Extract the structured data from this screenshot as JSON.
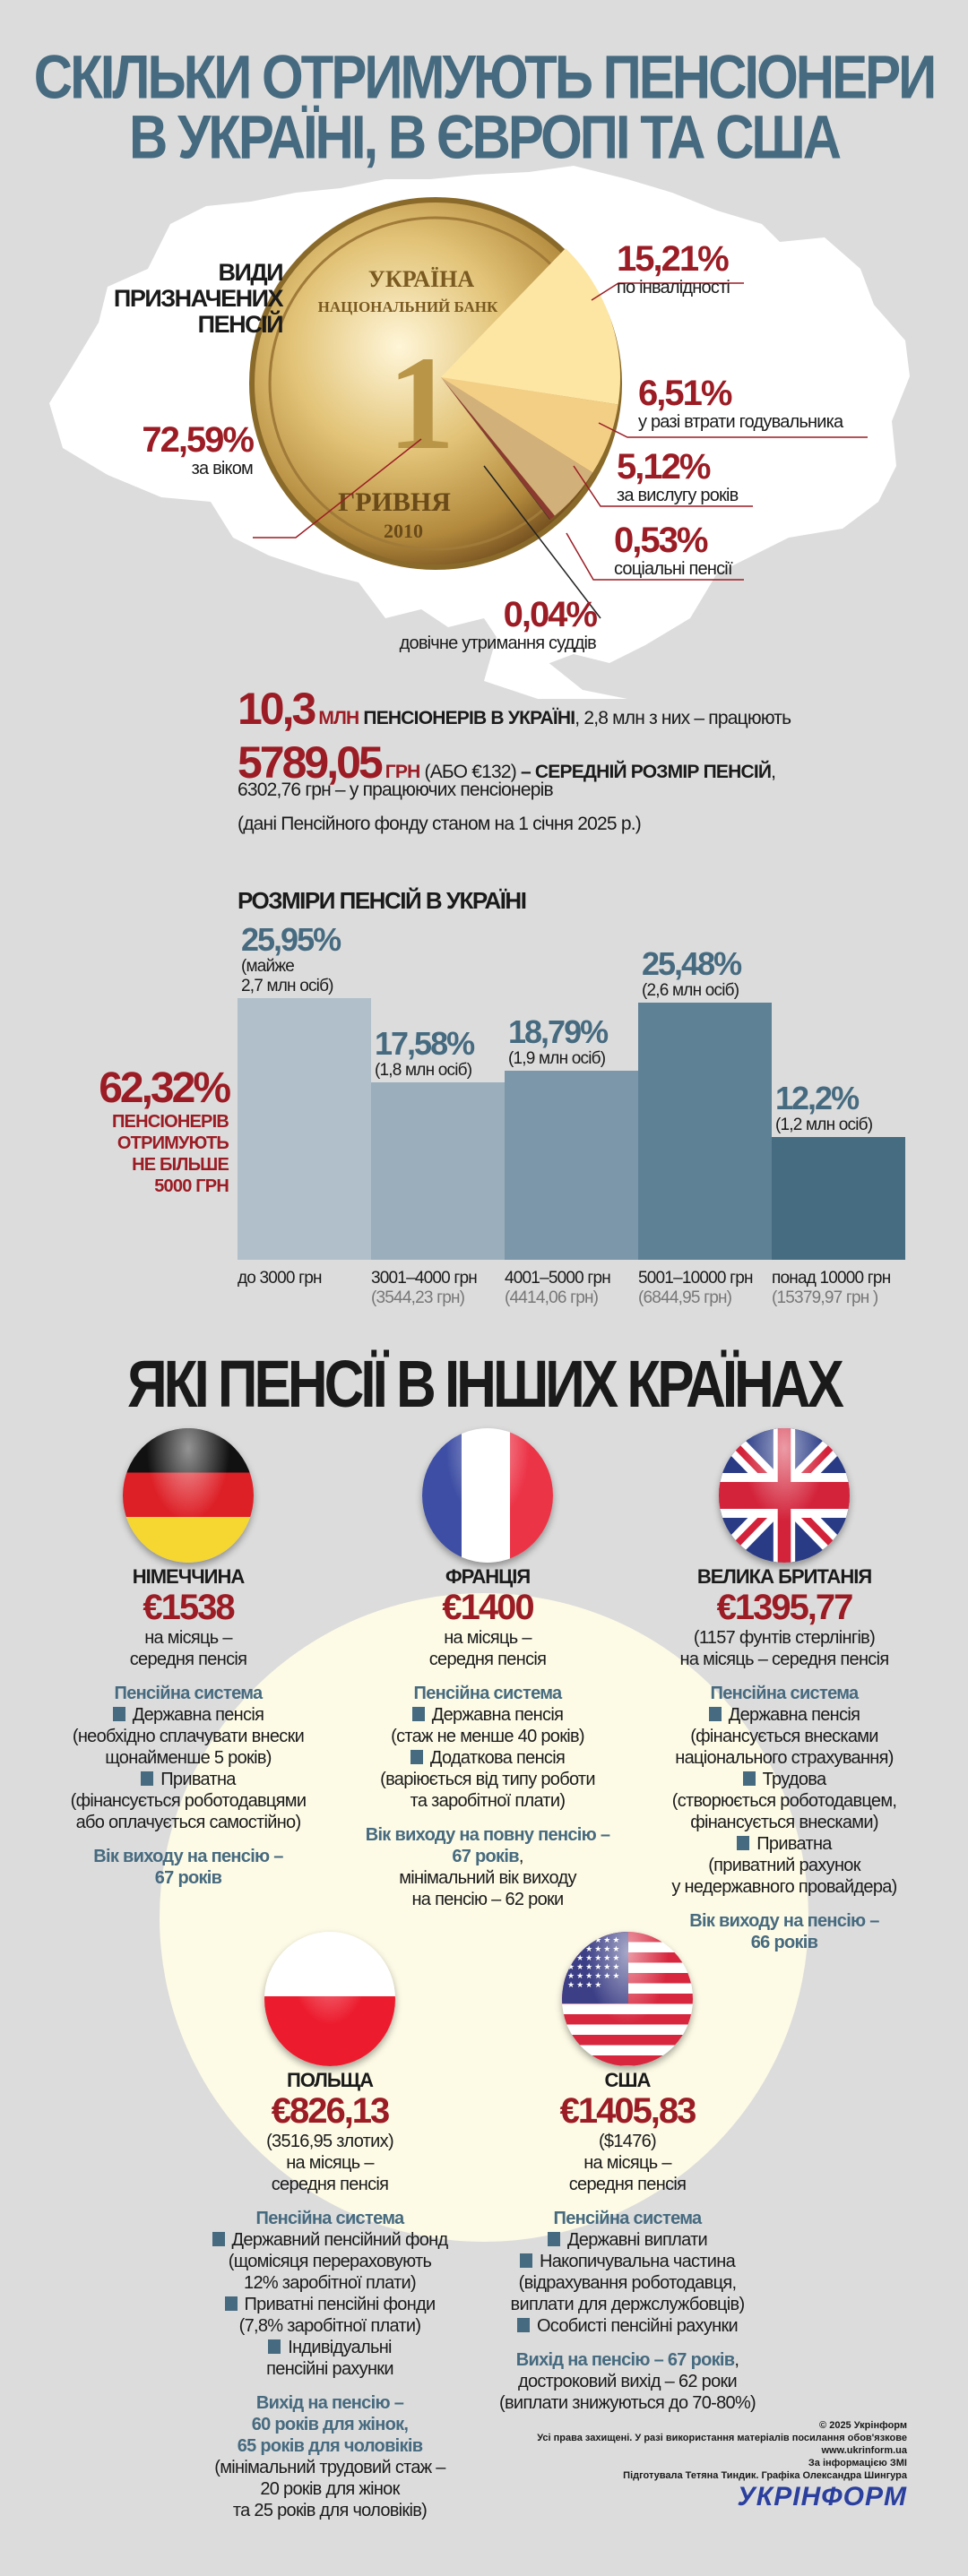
{
  "title": {
    "line1": "СКІЛЬКИ ОТРИМУЮТЬ ПЕНСІОНЕРИ",
    "line2": "В УКРАЇНІ, В ЄВРОПІ ТА США"
  },
  "pension_types": {
    "heading": [
      "ВИДИ",
      "ПРИЗНАЧЕНИХ",
      "ПЕНСІЙ"
    ],
    "coin_lettering": {
      "top": "УКРАЇНА",
      "bank": "НАЦІОНАЛЬНИЙ БАНК",
      "value": "1",
      "currency": "ГРИВНЯ",
      "year": "2010"
    }
  },
  "stats": {
    "pensioners_value": "10,3",
    "pensioners_unit": "МЛН",
    "pensioners_label": "ПЕНСІОНЕРІВ В УКРАЇНІ",
    "pensioners_note": ", 2,8 млн з них – працюють",
    "avg_value": "5789,05",
    "avg_unit": "ГРН",
    "avg_eur": "(АБО  €132)",
    "avg_label": "– СЕРЕДНІЙ РОЗМІР ПЕНСІЙ",
    "avg_working": "6302,76 грн – у працюючих пенсіонерів",
    "source": "(дані Пенсійного фонду станом на 1 січня 2025 р.)"
  },
  "highlight": {
    "value": "62,32%",
    "lines": [
      "ПЕНСІОНЕРІВ",
      "ОТРИМУЮТЬ",
      "НЕ БІЛЬШЕ",
      "5000 ГРН"
    ]
  },
  "other_countries_heading": "ЯКІ ПЕНСІЇ В ІНШИХ КРАЇНАХ",
  "colors": {
    "accent_red": "#9b1c24",
    "accent_blue": "#466a7f",
    "background": "#dcdcdc",
    "cream": "#fdfbe6"
  },
  "chart_data": [
    {
      "type": "pie",
      "title": "ВИДИ ПРИЗНАЧЕНИХ ПЕНСІЙ",
      "slices": [
        {
          "label": "за віком",
          "value": 72.59,
          "display": "72,59%"
        },
        {
          "label": "по інвалідності",
          "value": 15.21,
          "display": "15,21%",
          "color": "#fde6a4"
        },
        {
          "label": "у разі втрати годувальника",
          "value": 6.51,
          "display": "6,51%",
          "color": "#f3cf86"
        },
        {
          "label": "за вислугу років",
          "value": 5.12,
          "display": "5,12%",
          "color": "#d2b07a"
        },
        {
          "label": "соціальні пенсії",
          "value": 0.53,
          "display": "0,53%",
          "color": "#8a3a2e"
        },
        {
          "label": "довічне утримання суддів",
          "value": 0.04,
          "display": "0,04%",
          "color": "#222222"
        }
      ]
    },
    {
      "type": "bar",
      "title": "РОЗМІРИ ПЕНСІЙ В УКРАЇНІ",
      "categories": [
        "до 3000 грн",
        "3001–4000 грн",
        "4001–5000 грн",
        "5001–10000 грн",
        "понад 10000 грн"
      ],
      "averages": [
        "",
        "(3544,23 грн)",
        "(4414,06 грн)",
        "(6844,95 грн)",
        "(15379,97 грн )"
      ],
      "values": [
        25.95,
        17.58,
        18.79,
        25.48,
        12.2
      ],
      "value_labels": [
        "25,95%",
        "17,58%",
        "18,79%",
        "25,48%",
        "12,2%"
      ],
      "people_labels": [
        [
          "(майже",
          "2,7 млн осіб)"
        ],
        [
          "(1,8 млн осіб)"
        ],
        [
          "(1,9 млн осіб)"
        ],
        [
          "(2,6 млн осіб)"
        ],
        [
          "(1,2 млн осіб)"
        ]
      ],
      "colors": [
        "#b0bfc9",
        "#9aaebb",
        "#7b97a9",
        "#5e8196",
        "#456c80"
      ],
      "ylim": [
        0,
        26
      ]
    }
  ],
  "countries": [
    {
      "id": "germany",
      "flag": "germany-flag-icon",
      "name": "НІМЕЧЧИНА",
      "price": "€1538",
      "sub": [
        "на місяць –",
        "середня пенсія"
      ],
      "system_title": "Пенсійна система",
      "items": [
        {
          "name": "Державна пенсія",
          "lines": [
            "(необхідно сплачувати внески",
            "щонайменше 5 років)"
          ]
        },
        {
          "name": "Приватна",
          "lines": [
            "(фінансується роботодавцями",
            "або оплачується самостійно)"
          ]
        }
      ],
      "retirement": [
        {
          "text": "Вік виходу на пенсію –",
          "accent": true
        },
        {
          "text": "67 років",
          "accent": true
        }
      ]
    },
    {
      "id": "france",
      "flag": "france-flag-icon",
      "name": "ФРАНЦІЯ",
      "price": "€1400",
      "sub": [
        "на місяць –",
        "середня пенсія"
      ],
      "system_title": "Пенсійна система",
      "items": [
        {
          "name": "Державна пенсія",
          "lines": [
            "(стаж не менше 40 років)"
          ]
        },
        {
          "name": "Додаткова пенсія",
          "lines": [
            "(варіюється від типу роботи",
            "та заробітної плати)"
          ]
        }
      ],
      "retirement": [
        {
          "text": "Вік виходу на повну пенсію –",
          "accent": true
        },
        {
          "text": "67 років",
          "accent": true,
          "tail": ","
        },
        {
          "text": "мінімальний вік виходу"
        },
        {
          "text": "на пенсію – 62 роки"
        }
      ]
    },
    {
      "id": "uk",
      "flag": "uk-flag-icon",
      "name": "ВЕЛИКА БРИТАНІЯ",
      "price": "€1395,77",
      "sub": [
        "(1157 фунтів стерлінгів)",
        "на місяць – середня пенсія"
      ],
      "system_title": "Пенсійна система",
      "items": [
        {
          "name": "Державна пенсія",
          "lines": [
            "(фінансується внесками",
            "національного страхування)"
          ]
        },
        {
          "name": "Трудова",
          "lines": [
            "(створюється роботодавцем,",
            "фінансується внесками)"
          ]
        },
        {
          "name": "Приватна",
          "lines": [
            "(приватний рахунок",
            "у недержавного провайдера)"
          ]
        }
      ],
      "retirement": [
        {
          "text": "Вік виходу на пенсію –",
          "accent": true
        },
        {
          "text": "66 років",
          "accent": true
        }
      ]
    },
    {
      "id": "poland",
      "flag": "poland-flag-icon",
      "name": "ПОЛЬЩА",
      "price": "€826,13",
      "sub": [
        "(3516,95 злотих)",
        "на місяць –",
        "середня пенсія"
      ],
      "system_title": "Пенсійна система",
      "items": [
        {
          "name": "Державний пенсійний фонд",
          "lines": [
            "(щомісяця перераховують",
            "12% заробітної плати)"
          ]
        },
        {
          "name": "Приватні пенсійні фонди",
          "lines": [
            "(7,8% заробітної плати)"
          ]
        },
        {
          "name": "Індивідуальні",
          "lines": [
            "пенсійні рахунки"
          ]
        }
      ],
      "retirement": [
        {
          "text": "Вихід на пенсію –",
          "accent": true
        },
        {
          "text": "60 років для жінок,",
          "accent": true
        },
        {
          "text": "65 років для чоловіків",
          "accent": true
        },
        {
          "text": "(мінімальний трудовий стаж –"
        },
        {
          "text": "20 років для жінок"
        },
        {
          "text": "та 25 років для чоловіків)"
        }
      ]
    },
    {
      "id": "usa",
      "flag": "usa-flag-icon",
      "name": "США",
      "price": "€1405,83",
      "sub": [
        "($1476)",
        "на місяць –",
        "середня пенсія"
      ],
      "system_title": "Пенсійна система",
      "items": [
        {
          "name": "Державні виплати",
          "lines": []
        },
        {
          "name": "Накопичувальна частина",
          "lines": [
            "(відрахування роботодавця,",
            "виплати для держслужбовців)"
          ]
        },
        {
          "name": "Особисті пенсійні рахунки",
          "lines": []
        }
      ],
      "retirement": [
        {
          "text": "Вихід на пенсію – 67 років",
          "accent": true,
          "tail": ","
        },
        {
          "text": "достроковий вихід – 62 роки"
        },
        {
          "text": "(виплати знижуються до 70-80%)"
        }
      ]
    }
  ],
  "credits": {
    "lines": [
      "© 2025 Укрінформ",
      "Усі права захищені. У разі використання матеріалів посилання обов'язкове",
      "www.ukrinform.ua",
      "За інформацією ЗМІ",
      "Підготувала Тетяна Тиндик. Графіка Олександра Шингура"
    ],
    "logo": "УКРІНФОРМ"
  }
}
